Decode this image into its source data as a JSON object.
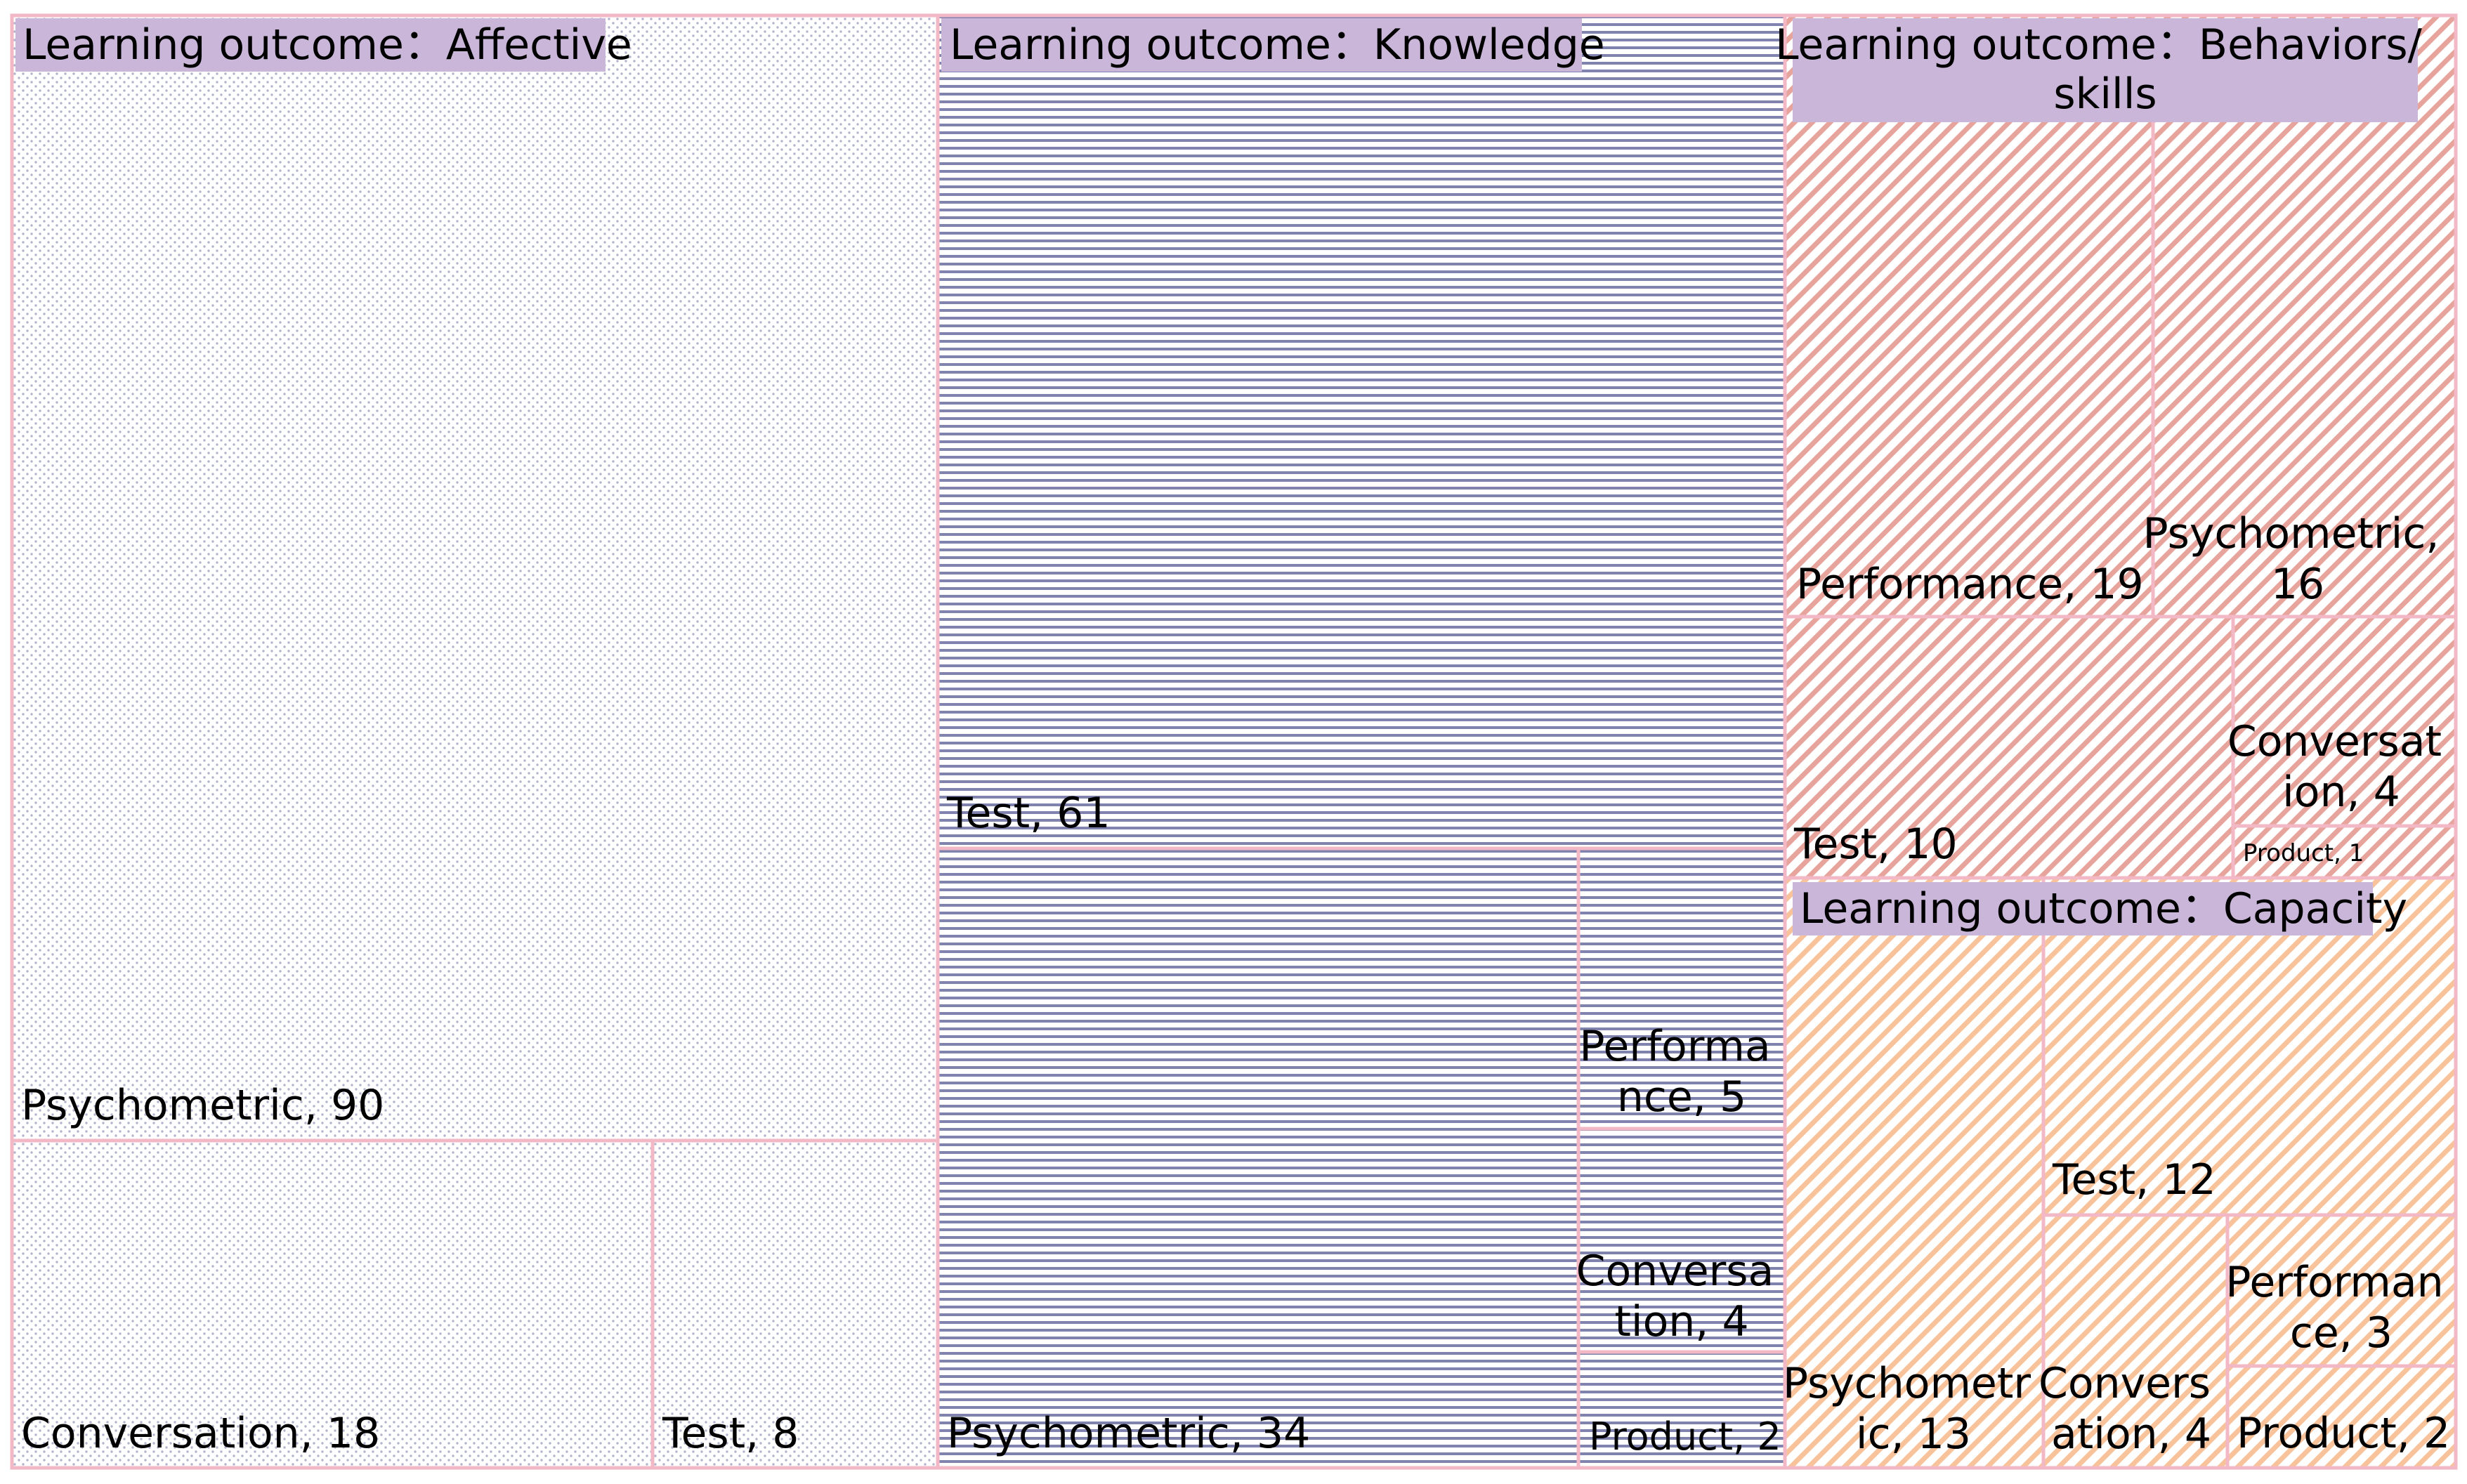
{
  "chart_data": {
    "type": "treemap",
    "groups": [
      {
        "title": "Learning outcome：Affective",
        "pattern": "dots",
        "color": "#a6a9c4",
        "cells": [
          {
            "label": "Psychometric, 90",
            "category": "Psychometric",
            "value": 90
          },
          {
            "label": "Conversation, 18",
            "category": "Conversation",
            "value": 18
          },
          {
            "label": "Test, 8",
            "category": "Test",
            "value": 8
          }
        ]
      },
      {
        "title": "Learning outcome：Knowledge",
        "pattern": "hlines",
        "color": "#6f73a3",
        "cells": [
          {
            "label": "Test, 61",
            "category": "Test",
            "value": 61
          },
          {
            "label": "Psychometric, 34",
            "category": "Psychometric",
            "value": 34
          },
          {
            "label": "Performa nce, 5",
            "category": "Performance",
            "value": 5
          },
          {
            "label": "Conversa tion, 4",
            "category": "Conversation",
            "value": 4
          },
          {
            "label": "Product, 2",
            "category": "Product",
            "value": 2
          }
        ]
      },
      {
        "title": "Learning outcome：Behaviors/ skills",
        "pattern": "diag",
        "color": "#e09a92",
        "cells": [
          {
            "label": "Performance, 19",
            "category": "Performance",
            "value": 19
          },
          {
            "label": "Psychometric, 16",
            "category": "Psychometric",
            "value": 16
          },
          {
            "label": "Test, 10",
            "category": "Test",
            "value": 10
          },
          {
            "label": "Conversat ion, 4",
            "category": "Conversation",
            "value": 4
          },
          {
            "label": "Product, 1",
            "category": "Product",
            "value": 1
          }
        ]
      },
      {
        "title": "Learning outcome：Capacity",
        "pattern": "diag",
        "color": "#f7bd8e",
        "cells": [
          {
            "label": "Psychometr ic, 13",
            "category": "Psychometric",
            "value": 13
          },
          {
            "label": "Test, 12",
            "category": "Test",
            "value": 12
          },
          {
            "label": "Convers ation, 4",
            "category": "Conversation",
            "value": 4
          },
          {
            "label": "Performan ce, 3",
            "category": "Performance",
            "value": 3
          },
          {
            "label": "Product, 2",
            "category": "Product",
            "value": 2
          }
        ]
      }
    ],
    "border_color": "#f2b8c6",
    "title_bg_color": "#c9b6d8"
  }
}
